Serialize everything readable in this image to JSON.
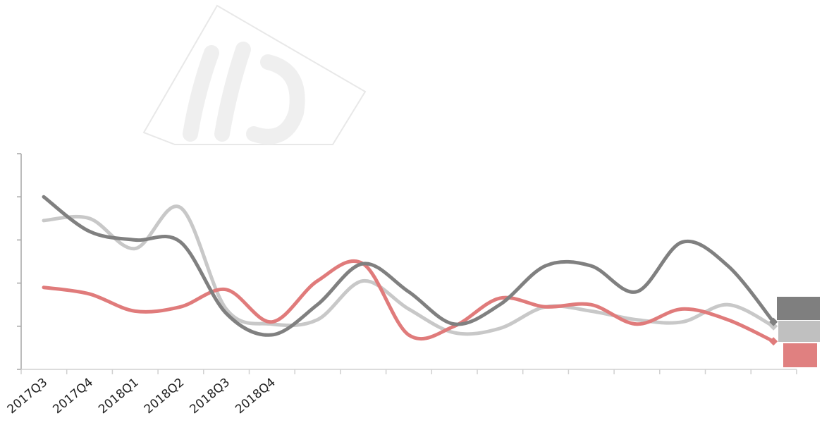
{
  "chart_data": {
    "type": "line",
    "title": "",
    "xlabel": "",
    "ylabel": "",
    "x_tick_labels": [
      "2017Q3",
      "2017Q4",
      "2018Q1",
      "2018Q2",
      "2018Q3",
      "2018Q4"
    ],
    "ylim": [
      0,
      5
    ],
    "y_ticks": [
      0,
      1,
      2,
      3,
      4,
      5
    ],
    "grid": false,
    "legend": "none",
    "watermark": "logo",
    "series": [
      {
        "color": "#808080",
        "values": [
          4.0,
          3.2,
          3.0,
          2.95,
          1.3,
          0.8,
          1.5,
          2.45,
          1.8,
          1.05,
          1.5,
          2.4,
          2.4,
          1.8,
          2.95,
          2.4,
          1.1
        ],
        "end_marker": "diamond",
        "end_tag_color": "#7f7f7f"
      },
      {
        "color": "#c8c8c8",
        "values": [
          3.45,
          3.5,
          2.8,
          3.75,
          1.4,
          1.05,
          1.15,
          2.05,
          1.4,
          0.85,
          0.95,
          1.45,
          1.35,
          1.15,
          1.1,
          1.5,
          1.0
        ],
        "end_marker": "diamond",
        "end_tag_color": "#c0c0c0"
      },
      {
        "color": "#e07b7b",
        "values": [
          1.9,
          1.75,
          1.35,
          1.45,
          1.85,
          1.1,
          2.05,
          2.45,
          0.8,
          1.0,
          1.65,
          1.45,
          1.5,
          1.05,
          1.4,
          1.15,
          0.65
        ],
        "end_marker": "diamond",
        "end_tag_color": "#e08080"
      }
    ]
  }
}
